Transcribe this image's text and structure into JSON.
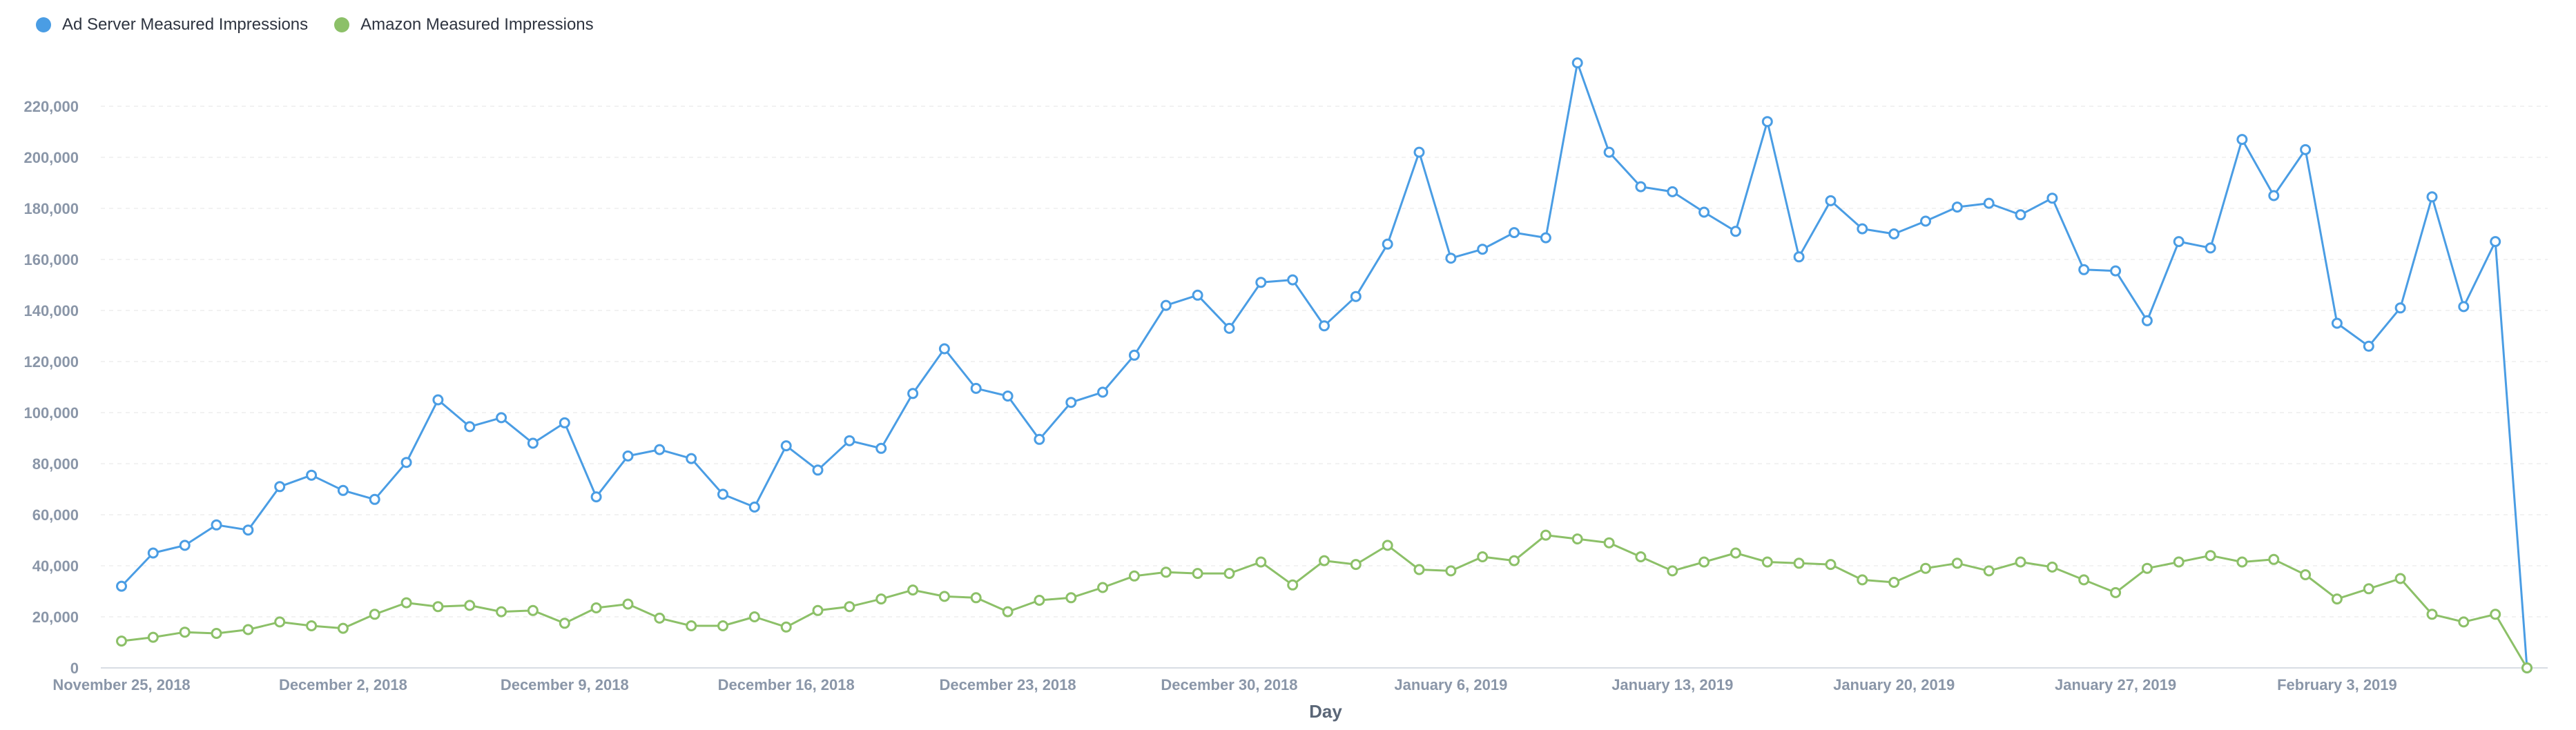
{
  "colors": {
    "series1": "#4a9de4",
    "series2": "#8cc068",
    "grid": "#eeeeee",
    "axis": "#d8dde4"
  },
  "chart_data": {
    "type": "line",
    "x": [
      "2018-11-25",
      "2018-11-26",
      "2018-11-27",
      "2018-11-28",
      "2018-11-29",
      "2018-11-30",
      "2018-12-01",
      "2018-12-02",
      "2018-12-03",
      "2018-12-04",
      "2018-12-05",
      "2018-12-06",
      "2018-12-07",
      "2018-12-08",
      "2018-12-09",
      "2018-12-10",
      "2018-12-11",
      "2018-12-12",
      "2018-12-13",
      "2018-12-14",
      "2018-12-15",
      "2018-12-16",
      "2018-12-17",
      "2018-12-18",
      "2018-12-19",
      "2018-12-20",
      "2018-12-21",
      "2018-12-22",
      "2018-12-23",
      "2018-12-24",
      "2018-12-25",
      "2018-12-26",
      "2018-12-27",
      "2018-12-28",
      "2018-12-29",
      "2018-12-30",
      "2018-12-31",
      "2019-01-01",
      "2019-01-02",
      "2019-01-03",
      "2019-01-04",
      "2019-01-05",
      "2019-01-06",
      "2019-01-07",
      "2019-01-08",
      "2019-01-09",
      "2019-01-10",
      "2019-01-11",
      "2019-01-12",
      "2019-01-13",
      "2019-01-14",
      "2019-01-15",
      "2019-01-16",
      "2019-01-17",
      "2019-01-18",
      "2019-01-19",
      "2019-01-20",
      "2019-01-21",
      "2019-01-22",
      "2019-01-23",
      "2019-01-24",
      "2019-01-25",
      "2019-01-26",
      "2019-01-27",
      "2019-01-28",
      "2019-01-29",
      "2019-01-30",
      "2019-01-31",
      "2019-02-01",
      "2019-02-02",
      "2019-02-03",
      "2019-02-04",
      "2019-02-05",
      "2019-02-06",
      "2019-02-07",
      "2019-02-08",
      "2019-02-09"
    ],
    "series": [
      {
        "name": "Ad Server Measured Impressions",
        "values": [
          32000,
          45000,
          48000,
          56000,
          54000,
          71000,
          75500,
          69500,
          66000,
          80500,
          105000,
          94500,
          98000,
          88000,
          96000,
          67000,
          83000,
          85500,
          82000,
          68000,
          63000,
          87000,
          77500,
          89000,
          86000,
          107500,
          125000,
          109500,
          106500,
          89500,
          104000,
          108000,
          122500,
          142000,
          146000,
          133000,
          151000,
          152000,
          134000,
          145500,
          166000,
          202000,
          160500,
          164000,
          170500,
          168500,
          237000,
          202000,
          188500,
          186500,
          178500,
          171000,
          214000,
          161000,
          183000,
          172000,
          170000,
          175000,
          180500,
          182000,
          177500,
          184000,
          156000,
          155500,
          136000,
          167000,
          164500,
          207000,
          185000,
          203000,
          135000,
          126000,
          141000,
          184500,
          141500,
          167000,
          0
        ],
        "color": "#4a9de4"
      },
      {
        "name": "Amazon Measured Impressions",
        "values": [
          10500,
          12000,
          14000,
          13500,
          15000,
          18000,
          16500,
          15500,
          21000,
          25500,
          24000,
          24500,
          22000,
          22500,
          17500,
          23500,
          25000,
          19500,
          16500,
          16500,
          20000,
          16000,
          22500,
          24000,
          27000,
          30500,
          28000,
          27500,
          22000,
          26500,
          27500,
          31500,
          36000,
          37500,
          37000,
          37000,
          41500,
          32500,
          42000,
          40500,
          48000,
          38500,
          38000,
          43500,
          42000,
          52000,
          50500,
          49000,
          43500,
          38000,
          41500,
          45000,
          41500,
          41000,
          40500,
          34500,
          33500,
          39000,
          41000,
          38000,
          41500,
          39500,
          34500,
          29500,
          39000,
          41500,
          44000,
          41500,
          42500,
          36500,
          27000,
          31000,
          35000,
          21000,
          18000,
          21000,
          0
        ],
        "color": "#8cc068"
      }
    ],
    "xticks": [
      {
        "date": "2018-11-25",
        "label": "November 25, 2018"
      },
      {
        "date": "2018-12-02",
        "label": "December 2, 2018"
      },
      {
        "date": "2018-12-09",
        "label": "December 9, 2018"
      },
      {
        "date": "2018-12-16",
        "label": "December 16, 2018"
      },
      {
        "date": "2018-12-23",
        "label": "December 23, 2018"
      },
      {
        "date": "2018-12-30",
        "label": "December 30, 2018"
      },
      {
        "date": "2019-01-06",
        "label": "January 6, 2019"
      },
      {
        "date": "2019-01-13",
        "label": "January 13, 2019"
      },
      {
        "date": "2019-01-20",
        "label": "January 20, 2019"
      },
      {
        "date": "2019-01-27",
        "label": "January 27, 2019"
      },
      {
        "date": "2019-02-03",
        "label": "February 3, 2019"
      }
    ],
    "yticks": [
      {
        "value": 0,
        "label": "0"
      },
      {
        "value": 20000,
        "label": "20,000"
      },
      {
        "value": 40000,
        "label": "40,000"
      },
      {
        "value": 60000,
        "label": "60,000"
      },
      {
        "value": 80000,
        "label": "80,000"
      },
      {
        "value": 100000,
        "label": "100,000"
      },
      {
        "value": 120000,
        "label": "120,000"
      },
      {
        "value": 140000,
        "label": "140,000"
      },
      {
        "value": 160000,
        "label": "160,000"
      },
      {
        "value": 180000,
        "label": "180,000"
      },
      {
        "value": 200000,
        "label": "200,000"
      },
      {
        "value": 220000,
        "label": "220,000"
      }
    ],
    "xlabel": "Day",
    "ylabel": "",
    "ylim": [
      0,
      240000
    ],
    "grid": true,
    "legend": "top-left"
  }
}
